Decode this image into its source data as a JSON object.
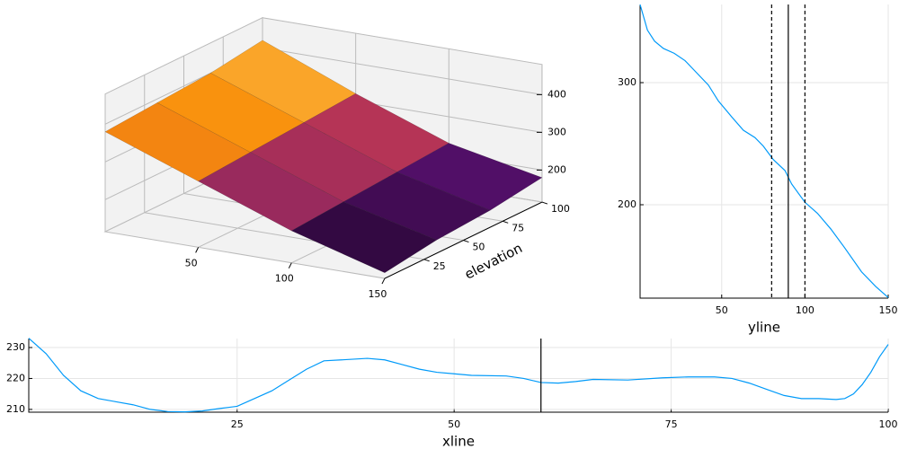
{
  "chart_data": [
    {
      "type": "surface",
      "ylabel": "elevation",
      "colormap": "inferno",
      "x": [
        0,
        50,
        100,
        150
      ],
      "y": [
        0,
        33,
        67,
        100
      ],
      "z": [
        [
          380,
          290,
          200,
          130
        ],
        [
          390,
          300,
          210,
          150
        ],
        [
          400,
          310,
          220,
          160
        ],
        [
          420,
          320,
          230,
          180
        ]
      ],
      "xlim": [
        0,
        150
      ],
      "ylim": [
        0,
        100
      ],
      "zlim": [
        115,
        480
      ],
      "xticks": [
        50,
        100,
        150
      ],
      "yticks": [
        25,
        50,
        75,
        100
      ],
      "zticks": [
        200,
        300,
        400
      ],
      "grid": true
    },
    {
      "type": "line",
      "xlabel": "yline",
      "color": "#009af9",
      "x": [
        1,
        5.4,
        9.7,
        15,
        21.5,
        28,
        35,
        42,
        48,
        56,
        63,
        70,
        75,
        81,
        88,
        92,
        100,
        107.5,
        115.6,
        123.7,
        134,
        142.5,
        150
      ],
      "values": [
        364,
        343,
        334,
        328,
        324,
        318,
        308,
        298,
        285,
        272,
        261,
        255,
        248,
        237,
        228,
        217,
        202,
        193,
        180,
        165,
        145,
        133,
        124
      ],
      "xlim": [
        1,
        150
      ],
      "ylim": [
        123.5,
        364
      ],
      "xticks": [
        50,
        100,
        150
      ],
      "yticks": [
        200,
        300
      ],
      "grid": true,
      "vlines": [
        80,
        90,
        100
      ],
      "vline_styles": [
        "dashed",
        "solid",
        "dashed"
      ]
    },
    {
      "type": "line",
      "xlabel": "xline",
      "color": "#009af9",
      "x": [
        1,
        3,
        5,
        7,
        9,
        11,
        13,
        15,
        17,
        19,
        21,
        23,
        25,
        27,
        29,
        31,
        33,
        35,
        37,
        40,
        42,
        44,
        46,
        48,
        50,
        52,
        56,
        58,
        60,
        62,
        64,
        66,
        70,
        74,
        77,
        80,
        82,
        84,
        86,
        88,
        90,
        92,
        94,
        95,
        96,
        97,
        98,
        99,
        100
      ],
      "values": [
        233,
        228,
        221,
        216,
        213.5,
        212.5,
        211.5,
        210,
        209.3,
        209.2,
        209.5,
        210.3,
        211,
        213.5,
        216,
        219.5,
        223,
        225.7,
        226,
        226.5,
        226,
        224.5,
        223,
        222,
        221.5,
        221,
        220.8,
        220,
        218.7,
        218.5,
        219,
        219.7,
        219.5,
        220.2,
        220.5,
        220.5,
        220,
        218.5,
        216.5,
        214.5,
        213.5,
        213.5,
        213.2,
        213.5,
        215,
        218,
        222,
        227,
        231
      ],
      "xlim": [
        1,
        100
      ],
      "ylim": [
        209.1,
        232.9
      ],
      "xticks": [
        25,
        50,
        75,
        100
      ],
      "yticks": [
        210,
        220,
        230
      ],
      "grid": true,
      "vlines": [
        60
      ],
      "vline_styles": [
        "solid"
      ]
    }
  ]
}
